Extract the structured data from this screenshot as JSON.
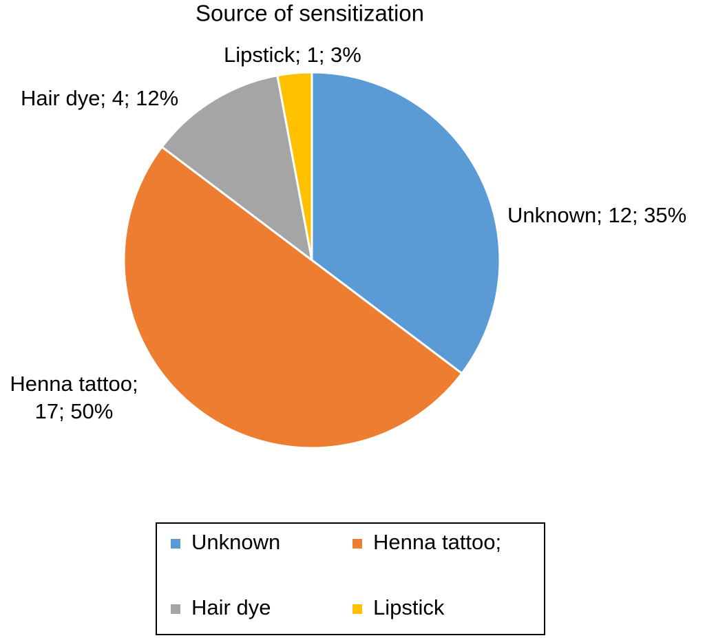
{
  "chart_data": {
    "type": "pie",
    "title": "Source of sensitization",
    "categories": [
      "Unknown",
      "Henna tattoo;",
      "Hair dye",
      "Lipstick"
    ],
    "values": [
      12,
      17,
      4,
      1
    ],
    "value_labels": [
      "Unknown; 12; 35%",
      "Henna tattoo; 17; 50%",
      "Hair dye; 4; 12%",
      "Lipstick; 1; 3%"
    ],
    "colors": [
      "#5b9bd5",
      "#ed7d31",
      "#a5a5a5",
      "#ffc000"
    ],
    "legend": "bottom"
  }
}
